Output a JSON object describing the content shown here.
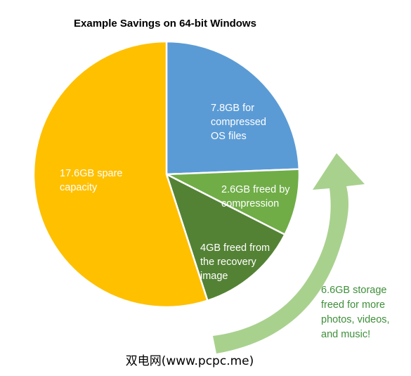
{
  "chart_data": {
    "type": "pie",
    "title": "Example Savings on 64-bit Windows",
    "unit": "GB",
    "slices": [
      {
        "value": 7.8,
        "color": "#5b9bd5",
        "label_lines": [
          "7.8GB for",
          "compressed",
          "OS files"
        ]
      },
      {
        "value": 2.6,
        "color": "#70ad47",
        "label_lines": [
          "2.6GB freed by",
          "compression"
        ]
      },
      {
        "value": 4.0,
        "color": "#548235",
        "label_lines": [
          "4GB freed from",
          "the recovery",
          "image"
        ]
      },
      {
        "value": 17.6,
        "color": "#ffc000",
        "label_lines": [
          "17.6GB spare",
          "capacity"
        ]
      }
    ],
    "annotation": {
      "lines": [
        "6.6GB storage",
        "freed for more",
        "photos, videos,",
        "and music!"
      ],
      "color": "#3f8f3a",
      "arrow_color": "#a9d18e"
    }
  },
  "watermark": "双电网(www.pcpc.me)"
}
